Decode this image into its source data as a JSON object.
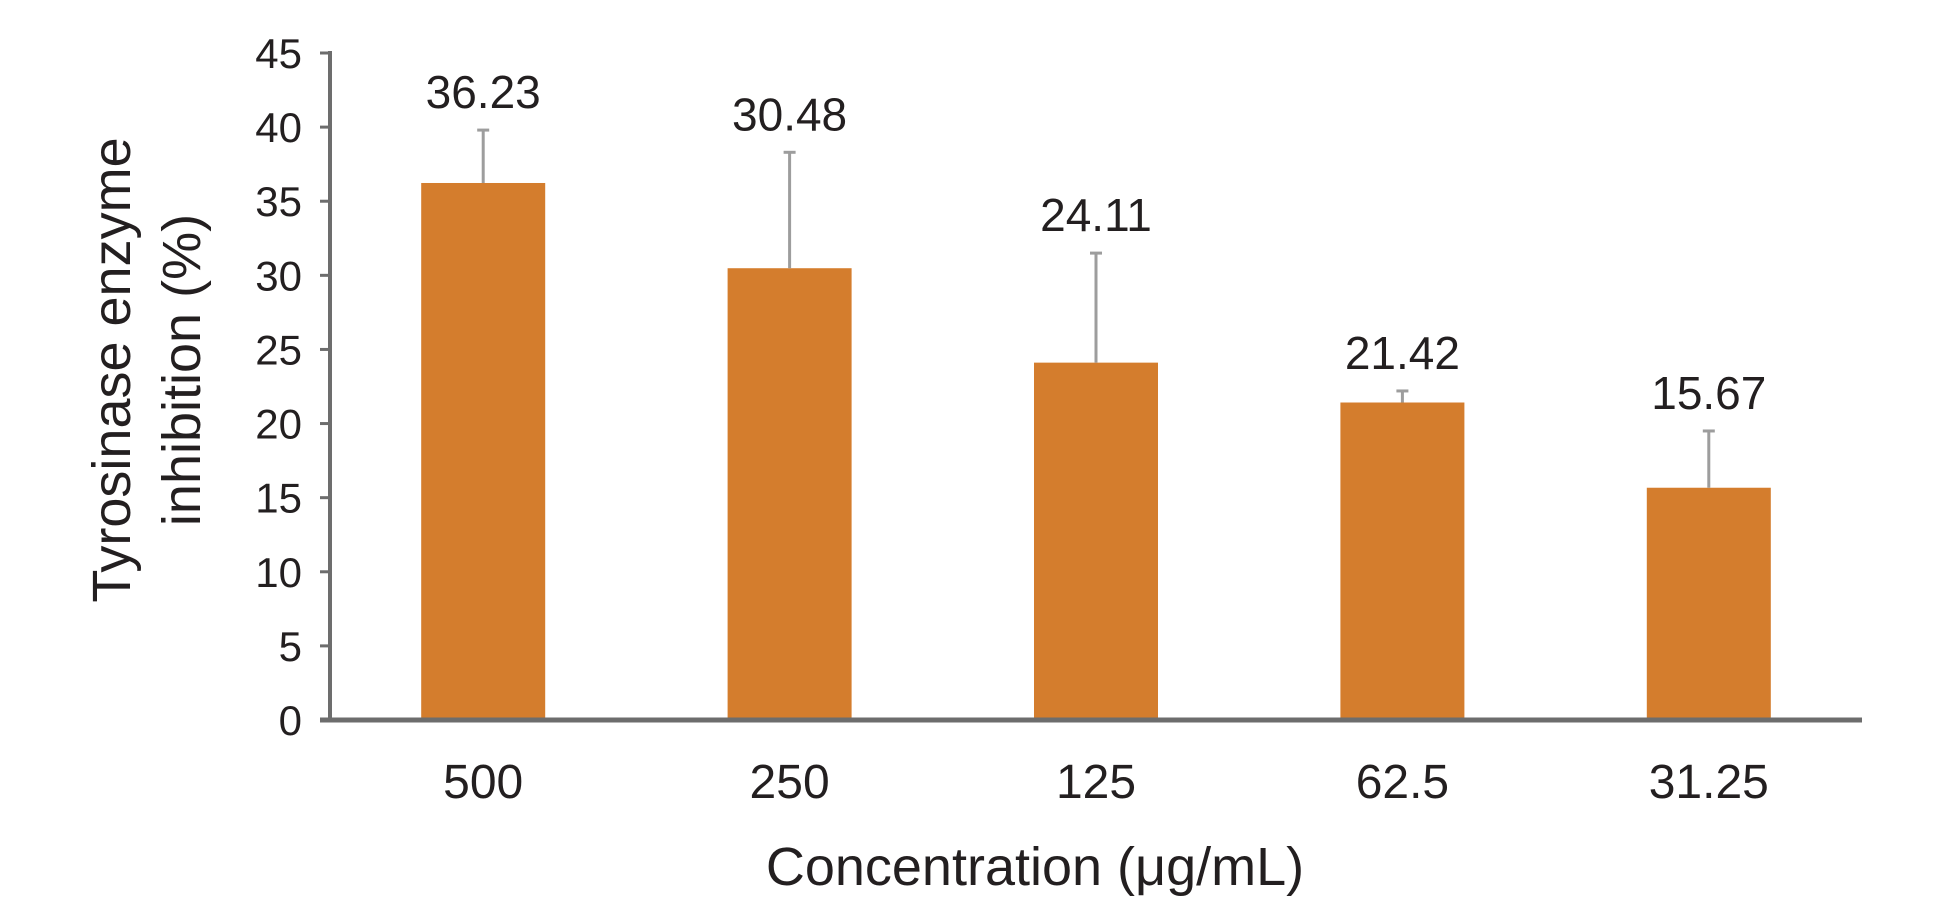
{
  "chart_data": {
    "type": "bar",
    "title": "",
    "xlabel": "Concentration (μg/mL)",
    "ylabel_lines": [
      "Tyrosinase enzyme",
      "inhibition (%)"
    ],
    "categories": [
      "500",
      "250",
      "125",
      "62.5",
      "31.25"
    ],
    "values": [
      36.23,
      30.48,
      24.11,
      21.42,
      15.67
    ],
    "value_labels": [
      "36.23",
      "30.48",
      "24.11",
      "21.42",
      "15.67"
    ],
    "error_upper": [
      39.8,
      38.3,
      31.5,
      22.2,
      19.5
    ],
    "ylim": [
      0,
      45
    ],
    "yticks": [
      0,
      5,
      10,
      15,
      20,
      25,
      30,
      35,
      40,
      45
    ],
    "ytick_labels": [
      "0",
      "5",
      "10",
      "15",
      "20",
      "25",
      "30",
      "35",
      "40",
      "45"
    ],
    "grid": false,
    "legend": "none",
    "colors": {
      "bar": "#d47d2d",
      "error_bar": "#9d9d9d",
      "axis": "#6d6d6d",
      "text": "#231f20"
    }
  }
}
